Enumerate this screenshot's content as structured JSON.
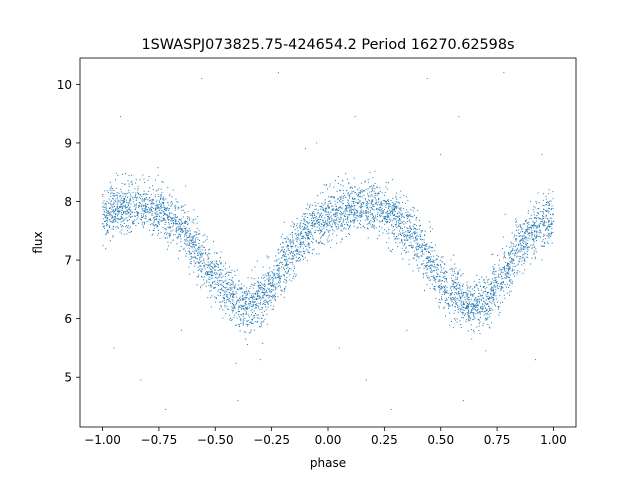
{
  "chart_data": {
    "type": "scatter",
    "title": "1SWASPJ073825.75-424654.2 Period 16270.62598s",
    "xlabel": "phase",
    "ylabel": "flux",
    "xlim": [
      -1.1,
      1.1
    ],
    "ylim": [
      4.15,
      10.45
    ],
    "x_ticks": [
      -1.0,
      -0.75,
      -0.5,
      -0.25,
      0.0,
      0.25,
      0.5,
      0.75,
      1.0
    ],
    "x_tick_labels": [
      "−1.00",
      "−0.75",
      "−0.50",
      "−0.25",
      "0.00",
      "0.25",
      "0.50",
      "0.75",
      "1.00"
    ],
    "y_ticks": [
      5,
      6,
      7,
      8,
      9,
      10
    ],
    "y_tick_labels": [
      "5",
      "6",
      "7",
      "8",
      "9",
      "10"
    ],
    "grid": false,
    "legend": "none",
    "point_color": "#1f77b4",
    "series": [
      {
        "phase_range": [
          -1.0,
          1.0
        ],
        "trend": [
          {
            "x": -1.0,
            "y": 7.75
          },
          {
            "x": -0.95,
            "y": 7.82
          },
          {
            "x": -0.9,
            "y": 7.88
          },
          {
            "x": -0.85,
            "y": 7.92
          },
          {
            "x": -0.8,
            "y": 7.9
          },
          {
            "x": -0.75,
            "y": 7.85
          },
          {
            "x": -0.7,
            "y": 7.72
          },
          {
            "x": -0.65,
            "y": 7.55
          },
          {
            "x": -0.6,
            "y": 7.3
          },
          {
            "x": -0.55,
            "y": 7.0
          },
          {
            "x": -0.5,
            "y": 6.7
          },
          {
            "x": -0.45,
            "y": 6.45
          },
          {
            "x": -0.4,
            "y": 6.28
          },
          {
            "x": -0.35,
            "y": 6.2
          },
          {
            "x": -0.3,
            "y": 6.3
          },
          {
            "x": -0.25,
            "y": 6.55
          },
          {
            "x": -0.2,
            "y": 6.9
          },
          {
            "x": -0.15,
            "y": 7.2
          },
          {
            "x": -0.1,
            "y": 7.45
          },
          {
            "x": -0.05,
            "y": 7.62
          },
          {
            "x": 0.0,
            "y": 7.75
          },
          {
            "x": 0.05,
            "y": 7.82
          },
          {
            "x": 0.1,
            "y": 7.88
          },
          {
            "x": 0.15,
            "y": 7.92
          },
          {
            "x": 0.2,
            "y": 7.9
          },
          {
            "x": 0.25,
            "y": 7.85
          },
          {
            "x": 0.3,
            "y": 7.72
          },
          {
            "x": 0.35,
            "y": 7.55
          },
          {
            "x": 0.4,
            "y": 7.3
          },
          {
            "x": 0.45,
            "y": 7.0
          },
          {
            "x": 0.5,
            "y": 6.7
          },
          {
            "x": 0.55,
            "y": 6.45
          },
          {
            "x": 0.6,
            "y": 6.28
          },
          {
            "x": 0.65,
            "y": 6.2
          },
          {
            "x": 0.7,
            "y": 6.3
          },
          {
            "x": 0.75,
            "y": 6.55
          },
          {
            "x": 0.8,
            "y": 6.9
          },
          {
            "x": 0.85,
            "y": 7.2
          },
          {
            "x": 0.9,
            "y": 7.45
          },
          {
            "x": 0.95,
            "y": 7.62
          },
          {
            "x": 1.0,
            "y": 7.75
          }
        ],
        "scatter_sigma": 0.22,
        "point_count": 4800,
        "outliers": [
          {
            "x": -0.92,
            "y": 9.45
          },
          {
            "x": -0.56,
            "y": 10.1
          },
          {
            "x": -0.22,
            "y": 10.2
          },
          {
            "x": 0.12,
            "y": 9.45
          },
          {
            "x": 0.58,
            "y": 9.45
          },
          {
            "x": 0.78,
            "y": 10.2
          },
          {
            "x": 0.44,
            "y": 10.1
          },
          {
            "x": -0.83,
            "y": 4.95
          },
          {
            "x": -0.95,
            "y": 5.5
          },
          {
            "x": -0.72,
            "y": 4.45
          },
          {
            "x": -0.4,
            "y": 4.6
          },
          {
            "x": 0.05,
            "y": 5.5
          },
          {
            "x": 0.17,
            "y": 4.95
          },
          {
            "x": 0.6,
            "y": 4.6
          },
          {
            "x": 0.92,
            "y": 5.3
          },
          {
            "x": 0.28,
            "y": 4.45
          },
          {
            "x": -0.1,
            "y": 8.9
          },
          {
            "x": 0.35,
            "y": 5.8
          },
          {
            "x": -0.65,
            "y": 5.8
          },
          {
            "x": 0.95,
            "y": 8.8
          },
          {
            "x": -0.3,
            "y": 5.3
          },
          {
            "x": 0.7,
            "y": 5.45
          },
          {
            "x": -0.05,
            "y": 9.0
          },
          {
            "x": 0.5,
            "y": 8.8
          }
        ]
      }
    ]
  }
}
